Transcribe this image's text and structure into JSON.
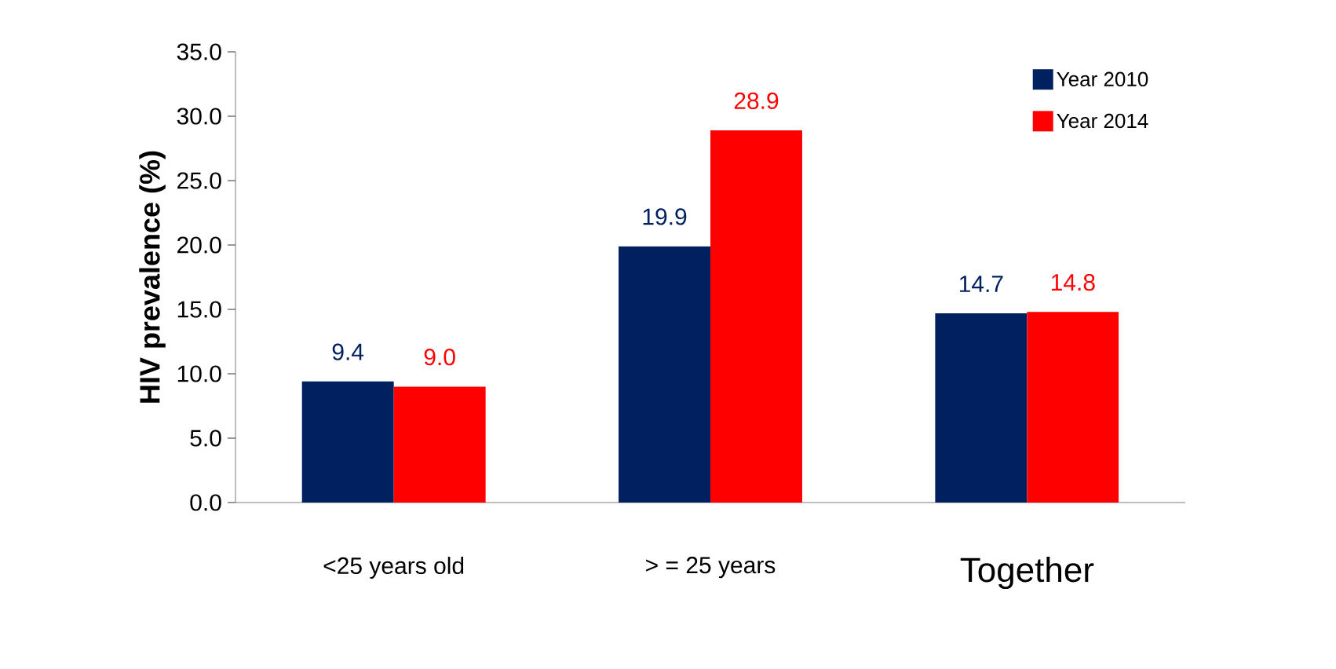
{
  "chart_data": {
    "type": "bar",
    "ylabel": "HIV prevalence (%)",
    "categories": [
      "<25 years old",
      "> = 25 years",
      "Together"
    ],
    "series": [
      {
        "name": "Year 2010",
        "color": "#002060",
        "values": [
          9.4,
          19.9,
          14.7
        ],
        "value_labels": [
          "9.4",
          "19.9",
          "14.7"
        ]
      },
      {
        "name": "Year 2014",
        "color": "#ff0000",
        "values": [
          9.0,
          28.9,
          14.8
        ],
        "value_labels": [
          "9.0",
          "28.9",
          "14.8"
        ]
      }
    ],
    "ylim": [
      0,
      35
    ],
    "yticks": [
      {
        "value": 0,
        "label": "0.0"
      },
      {
        "value": 5,
        "label": "5.0"
      },
      {
        "value": 10,
        "label": "10.0"
      },
      {
        "value": 15,
        "label": "15.0"
      },
      {
        "value": 20,
        "label": "20.0"
      },
      {
        "value": 25,
        "label": "25.0"
      },
      {
        "value": 30,
        "label": "30.0"
      },
      {
        "value": 35,
        "label": "35.0"
      }
    ],
    "grid": false,
    "legend": "top right"
  }
}
